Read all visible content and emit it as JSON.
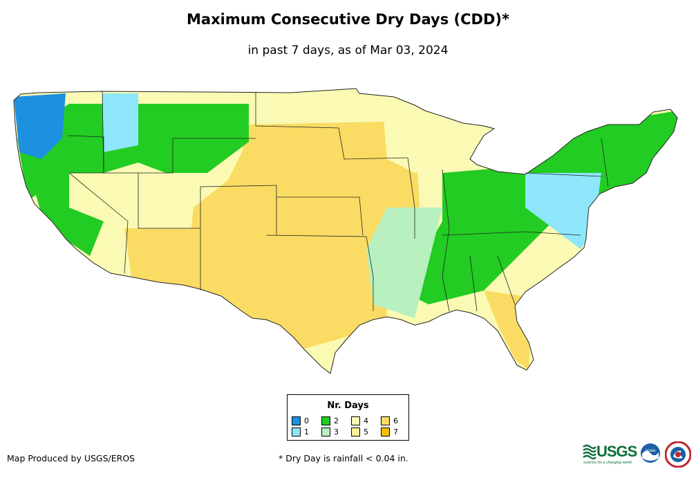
{
  "title": "Maximum Consecutive Dry Days (CDD)*",
  "subtitle": "in past 7 days, as of Mar 03, 2024",
  "legend": {
    "title": "Nr. Days",
    "items": [
      {
        "label": "0",
        "color": "#1e90e0"
      },
      {
        "label": "1",
        "color": "#8ee6fa"
      },
      {
        "label": "2",
        "color": "#22cc22"
      },
      {
        "label": "3",
        "color": "#b8f0c0"
      },
      {
        "label": "4",
        "color": "#fafab4"
      },
      {
        "label": "5",
        "color": "#faf096"
      },
      {
        "label": "6",
        "color": "#fadc64"
      },
      {
        "label": "7",
        "color": "#f5be00"
      }
    ]
  },
  "footer": {
    "producer": "Map Produced by USGS/EROS",
    "note": "* Dry Day is rainfall < 0.04 in."
  },
  "logos": {
    "usgs": "USGS",
    "usgs_tagline": "science for a changing world",
    "noaa": "noaa"
  }
}
